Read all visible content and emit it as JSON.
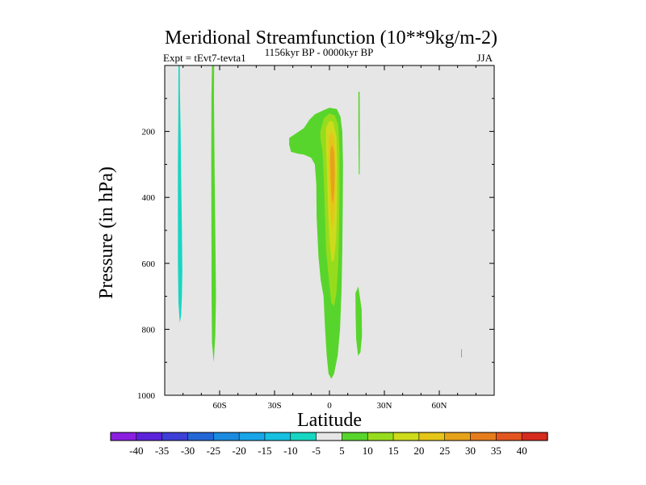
{
  "chart_data": {
    "type": "contour",
    "title": "Meridional Streamfunction (10**9kg/m-2)",
    "subtitle": "1156kyr BP - 0000kyr BP",
    "left_label": "Expt = tEvt7-tevta1",
    "right_label": "JJA",
    "xlabel": "Latitude",
    "ylabel": "Pressure (in hPa)",
    "xlim": [
      -90,
      90
    ],
    "ylim": [
      0,
      1000
    ],
    "x_ticks": [
      {
        "value": -60,
        "label": "60S"
      },
      {
        "value": -30,
        "label": "30S"
      },
      {
        "value": 0,
        "label": "0"
      },
      {
        "value": 30,
        "label": "30N"
      },
      {
        "value": 60,
        "label": "60N"
      }
    ],
    "y_ticks": [
      {
        "value": 200,
        "label": "200"
      },
      {
        "value": 400,
        "label": "400"
      },
      {
        "value": 600,
        "label": "600"
      },
      {
        "value": 800,
        "label": "800"
      },
      {
        "value": 1000,
        "label": "1000"
      }
    ],
    "background_color": "#e6e6e6",
    "colorbar": {
      "labels": [
        "-40",
        "-35",
        "-30",
        "-25",
        "-20",
        "-15",
        "-10",
        "-5",
        "5",
        "10",
        "15",
        "20",
        "25",
        "30",
        "35",
        "40"
      ],
      "colors": [
        "#8a1fe0",
        "#5b22d9",
        "#3d3fd6",
        "#2366d6",
        "#1b8be0",
        "#19a5e8",
        "#17c0e0",
        "#17d6c2",
        "#e6e6e6",
        "#58d52c",
        "#97dc1c",
        "#cddb1c",
        "#e6c51a",
        "#e6a21b",
        "#e57d1d",
        "#e3561f",
        "#d62c1e"
      ]
    },
    "regions": [
      {
        "level": "-10",
        "color": "#17d6c2",
        "points": [
          [
            -82.5,
            0
          ],
          [
            -81.8,
            0
          ],
          [
            -81.7,
            80
          ],
          [
            -81.3,
            200
          ],
          [
            -81.0,
            350
          ],
          [
            -80.6,
            500
          ],
          [
            -80.4,
            620
          ],
          [
            -80.6,
            700
          ],
          [
            -81.1,
            760
          ],
          [
            -81.8,
            780
          ],
          [
            -82.5,
            720
          ],
          [
            -82.8,
            600
          ],
          [
            -82.8,
            450
          ],
          [
            -82.8,
            300
          ],
          [
            -82.6,
            150
          ]
        ]
      },
      {
        "level": "5",
        "color": "#58d52c",
        "points": [
          [
            -64.2,
            0
          ],
          [
            -63.0,
            0
          ],
          [
            -63.1,
            100
          ],
          [
            -62.8,
            300
          ],
          [
            -62.4,
            500
          ],
          [
            -62.0,
            700
          ],
          [
            -62.4,
            820
          ],
          [
            -63.2,
            900
          ],
          [
            -64.2,
            840
          ],
          [
            -64.4,
            700
          ],
          [
            -64.5,
            500
          ],
          [
            -64.6,
            300
          ],
          [
            -64.5,
            100
          ]
        ]
      },
      {
        "level": "5",
        "color": "#58d52c",
        "points": [
          [
            -22,
            220
          ],
          [
            -18,
            205
          ],
          [
            -14,
            190
          ],
          [
            -11,
            165
          ],
          [
            -8,
            148
          ],
          [
            -3,
            135
          ],
          [
            0,
            128
          ],
          [
            4,
            132
          ],
          [
            6,
            155
          ],
          [
            7,
            200
          ],
          [
            7.4,
            300
          ],
          [
            7.3,
            420
          ],
          [
            7,
            560
          ],
          [
            6.6,
            680
          ],
          [
            5.8,
            800
          ],
          [
            4.5,
            880
          ],
          [
            2.5,
            935
          ],
          [
            1,
            950
          ],
          [
            -0.5,
            935
          ],
          [
            -1.5,
            880
          ],
          [
            -2.4,
            800
          ],
          [
            -3.2,
            700
          ],
          [
            -4.8,
            650
          ],
          [
            -6,
            580
          ],
          [
            -7,
            460
          ],
          [
            -7.2,
            360
          ],
          [
            -8,
            300
          ],
          [
            -10,
            280
          ],
          [
            -14,
            270
          ],
          [
            -17,
            268
          ],
          [
            -21,
            262
          ],
          [
            -22,
            240
          ]
        ]
      },
      {
        "level": "10",
        "color": "#97dc1c",
        "points": [
          [
            -5,
            200
          ],
          [
            -3,
            160
          ],
          [
            0,
            145
          ],
          [
            3,
            152
          ],
          [
            4.8,
            180
          ],
          [
            5.5,
            260
          ],
          [
            5.5,
            380
          ],
          [
            5.2,
            500
          ],
          [
            4.8,
            600
          ],
          [
            3.8,
            690
          ],
          [
            2.5,
            730
          ],
          [
            1,
            720
          ],
          [
            -0.5,
            640
          ],
          [
            -1.8,
            560
          ],
          [
            -2.5,
            450
          ],
          [
            -3,
            350
          ],
          [
            -3.8,
            260
          ],
          [
            -5,
            220
          ]
        ]
      },
      {
        "level": "15",
        "color": "#cddb1c",
        "points": [
          [
            -2,
            190
          ],
          [
            0,
            168
          ],
          [
            2,
            170
          ],
          [
            3.8,
            215
          ],
          [
            4.3,
            310
          ],
          [
            4.1,
            430
          ],
          [
            3.6,
            530
          ],
          [
            2.4,
            590
          ],
          [
            1.2,
            595
          ],
          [
            0,
            530
          ],
          [
            -0.8,
            430
          ],
          [
            -1.3,
            330
          ],
          [
            -1.8,
            250
          ]
        ]
      },
      {
        "level": "20",
        "color": "#e6c51a",
        "points": [
          [
            -0.5,
            220
          ],
          [
            1,
            200
          ],
          [
            2.5,
            215
          ],
          [
            3.3,
            280
          ],
          [
            3.3,
            380
          ],
          [
            2.6,
            460
          ],
          [
            1.6,
            495
          ],
          [
            0.7,
            470
          ],
          [
            0.1,
            380
          ],
          [
            -0.4,
            300
          ]
        ]
      },
      {
        "level": "25",
        "color": "#e6a21b",
        "points": [
          [
            0.6,
            252
          ],
          [
            1.6,
            240
          ],
          [
            2.6,
            265
          ],
          [
            2.9,
            330
          ],
          [
            2.5,
            390
          ],
          [
            1.8,
            420
          ],
          [
            1.1,
            400
          ],
          [
            0.6,
            340
          ],
          [
            0.3,
            285
          ]
        ]
      },
      {
        "level": "5",
        "color": "#58d52c",
        "points": [
          [
            15.8,
            80
          ],
          [
            16.5,
            80
          ],
          [
            16.6,
            200
          ],
          [
            16.5,
            330
          ],
          [
            16.0,
            330
          ],
          [
            15.8,
            200
          ]
        ]
      },
      {
        "level": "5",
        "color": "#58d52c",
        "points": [
          [
            14.2,
            690
          ],
          [
            15.8,
            670
          ],
          [
            17.6,
            740
          ],
          [
            17.8,
            820
          ],
          [
            16.9,
            870
          ],
          [
            15.6,
            880
          ],
          [
            14.6,
            830
          ],
          [
            14.3,
            760
          ]
        ]
      },
      {
        "level": "5",
        "color": "#58d52c",
        "points": [
          [
            71.9,
            860
          ],
          [
            72.3,
            860
          ],
          [
            72.4,
            885
          ],
          [
            71.9,
            885
          ]
        ]
      }
    ]
  }
}
